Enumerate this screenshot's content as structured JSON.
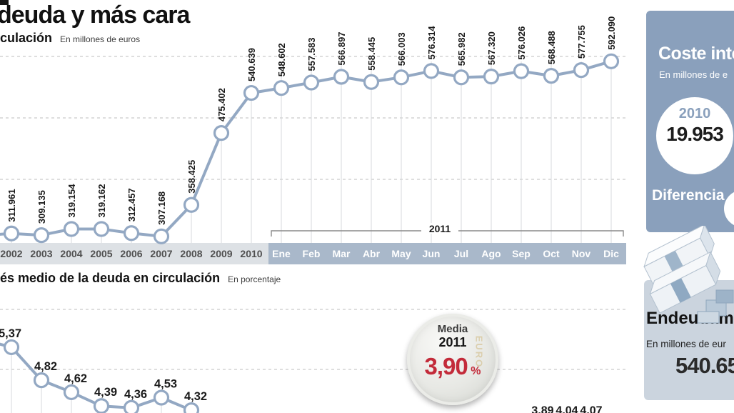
{
  "header": {
    "title_fragment": "deuda y más cara"
  },
  "colors": {
    "line": "#93a8c3",
    "grid_dashed": "#c9c9c9",
    "grid_vertical": "#d7dadd",
    "band_year": "#dde1e5",
    "band_month": "#a9b8ca",
    "sidebar_blue": "#8aa0bc",
    "box_light": "#cbd4de",
    "red": "#c32b3a"
  },
  "chart_data": [
    {
      "type": "line",
      "title_fragment": "culación",
      "units_note": "En millones de euros",
      "categories": [
        "2002",
        "2003",
        "2004",
        "2005",
        "2006",
        "2007",
        "2008",
        "2009",
        "2010",
        "Ene",
        "Feb",
        "Mar",
        "Abr",
        "May",
        "Jun",
        "Jul",
        "Ago",
        "Sep",
        "Oct",
        "Nov",
        "Dic"
      ],
      "values": [
        311961,
        309135,
        319154,
        319162,
        312457,
        307168,
        358425,
        475402,
        540639,
        548602,
        557583,
        566897,
        558445,
        566003,
        576314,
        565982,
        567320,
        576026,
        568488,
        577755,
        592090
      ],
      "value_labels": [
        "311.961",
        "309.135",
        "319.154",
        "319.162",
        "312.457",
        "307.168",
        "358.425",
        "475.402",
        "540.639",
        "548.602",
        "557.583",
        "566.897",
        "558.445",
        "566.003",
        "576.314",
        "565.982",
        "567.320",
        "576.026",
        "568.488",
        "577.755",
        "592.090"
      ],
      "months_start_index": 9,
      "span_label": "2011",
      "gridline_values": [
        400000,
        500000,
        600000
      ],
      "gridlines_unlabeled": true,
      "ylim": [
        300000,
        620000
      ],
      "grid": "dashed"
    },
    {
      "type": "line",
      "title_fragment": "és medio de la deuda en circulación",
      "units_note": "En porcentaje",
      "categories": [
        "2002",
        "2003",
        "2004",
        "2005",
        "2006",
        "2007",
        "2008"
      ],
      "values": [
        5.37,
        4.82,
        4.62,
        4.39,
        4.36,
        4.53,
        4.32
      ],
      "value_labels": [
        "5,37",
        "4,82",
        "4,62",
        "4,39",
        "4,36",
        "4,53",
        "4,32"
      ],
      "partial_labels": [
        "3,89",
        "4,04",
        "4,07"
      ],
      "gridline_values": [
        6,
        5
      ],
      "gridlines_unlabeled": true,
      "ylim": [
        4,
        6
      ],
      "grid": "dashed",
      "badge": {
        "label": "Media",
        "year": "2011",
        "value": "3,90",
        "unit": "%",
        "coin_text": "EURO"
      }
    }
  ],
  "sidebar": {
    "interest_cost_box": {
      "title_fragment": "Coste inte",
      "units_fragment": "En millones de e",
      "year_circle": {
        "year": "2010",
        "value": "19.953"
      },
      "difference_label": "Diferencia"
    },
    "debt_box": {
      "title_fragment": "Endeudami",
      "units_fragment": "En millones de eur",
      "value_fragment": "540.65"
    }
  }
}
